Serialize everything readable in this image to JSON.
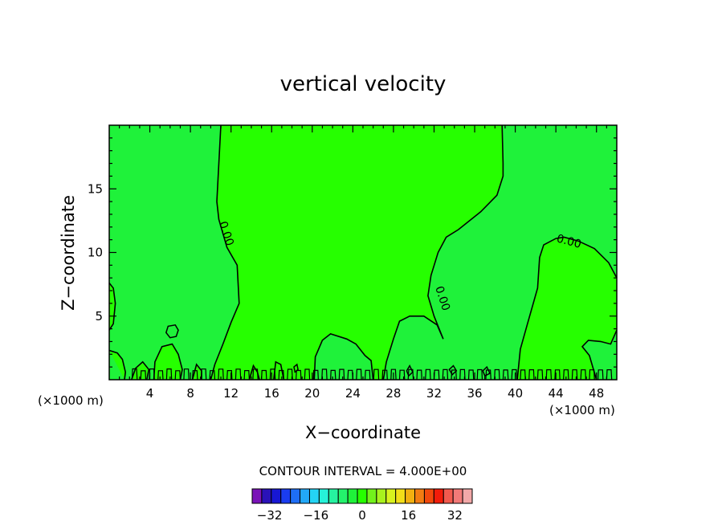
{
  "chart_data": {
    "type": "heatmap",
    "title": "vertical velocity",
    "xlabel": "X−coordinate",
    "ylabel": "Z−coordinate",
    "x_unit": "(×1000 m)",
    "y_unit": "(×1000 m)",
    "xlim": [
      0,
      50
    ],
    "ylim": [
      0,
      20
    ],
    "x_ticks": [
      4,
      8,
      12,
      16,
      20,
      24,
      28,
      32,
      36,
      40,
      44,
      48
    ],
    "y_ticks": [
      5,
      10,
      15
    ],
    "contour_interval_label": "CONTOUR INTERVAL = 4.000E+00",
    "contour_label": "0.00",
    "colorbar": {
      "ticks": [
        {
          "value": -32,
          "label": "−32"
        },
        {
          "value": -16,
          "label": "−16"
        },
        {
          "value": 0,
          "label": "0"
        },
        {
          "value": 16,
          "label": "16"
        },
        {
          "value": 32,
          "label": "32"
        }
      ],
      "range": [
        -38,
        38
      ],
      "interval": 4,
      "colors": [
        "#7a12b8",
        "#2a12b8",
        "#1717d4",
        "#1a3cf0",
        "#1e6ef6",
        "#22a8f8",
        "#24d4f4",
        "#26f2d8",
        "#26f2a0",
        "#24f26c",
        "#1ff23a",
        "#26ff00",
        "#72f21c",
        "#a8f21e",
        "#d8f21e",
        "#f2de18",
        "#f2b010",
        "#f27c12",
        "#f2480c",
        "#f21c0a",
        "#f25a4e",
        "#f27a78",
        "#f2a8a8"
      ]
    },
    "regions": {
      "positive_color": "#26ff00",
      "negative_color": "#1ff23a"
    },
    "contours": [
      [
        [
          11.0,
          20
        ],
        [
          10.8,
          17
        ],
        [
          10.6,
          14
        ],
        [
          10.8,
          12.6
        ],
        [
          11.6,
          10.4
        ],
        [
          12.6,
          9
        ],
        [
          12.8,
          6
        ],
        [
          12.0,
          4.5
        ],
        [
          11.2,
          2.8
        ],
        [
          10.4,
          1.2
        ],
        [
          10.0,
          0
        ]
      ],
      [
        [
          38.7,
          20
        ],
        [
          38.8,
          17
        ],
        [
          38.8,
          16
        ],
        [
          38.2,
          14.5
        ],
        [
          36.6,
          13.2
        ],
        [
          34.4,
          11.8
        ],
        [
          33.2,
          11.2
        ],
        [
          32.4,
          10
        ],
        [
          31.7,
          8.2
        ],
        [
          31.4,
          6.6
        ],
        [
          32.0,
          5.0
        ],
        [
          32.9,
          3.2
        ],
        [
          32.3,
          4.3
        ],
        [
          31.0,
          5.0
        ],
        [
          29.6,
          5.0
        ],
        [
          28.6,
          4.6
        ],
        [
          28.0,
          3.2
        ],
        [
          27.3,
          1.4
        ],
        [
          27.0,
          0
        ]
      ],
      [
        [
          40.2,
          0
        ],
        [
          40.5,
          2.4
        ],
        [
          41.2,
          4.4
        ],
        [
          42.2,
          7.2
        ],
        [
          42.4,
          9.6
        ],
        [
          42.8,
          10.6
        ],
        [
          44.0,
          11.1
        ],
        [
          44.8,
          11.2
        ],
        [
          46.2,
          10.9
        ],
        [
          47.8,
          10.3
        ],
        [
          49.2,
          9.2
        ],
        [
          50,
          8.0
        ]
      ],
      [
        [
          0,
          7.6
        ],
        [
          0.4,
          7.2
        ],
        [
          0.6,
          6.0
        ],
        [
          0.4,
          4.4
        ],
        [
          0,
          3.9
        ]
      ],
      [
        [
          0,
          2.3
        ],
        [
          0.8,
          2.1
        ],
        [
          1.3,
          1.6
        ],
        [
          1.6,
          0.6
        ],
        [
          1.5,
          0
        ]
      ],
      [
        [
          2.2,
          0
        ],
        [
          2.6,
          0.9
        ],
        [
          3.3,
          1.4
        ],
        [
          3.9,
          0.8
        ],
        [
          3.7,
          0
        ]
      ],
      [
        [
          4.4,
          0
        ],
        [
          4.5,
          1.4
        ],
        [
          5.2,
          2.6
        ],
        [
          6.2,
          2.8
        ],
        [
          6.8,
          2.0
        ],
        [
          7.2,
          0.8
        ],
        [
          7.0,
          0
        ]
      ],
      [
        [
          8.2,
          0
        ],
        [
          8.6,
          1.2
        ],
        [
          9.1,
          0.7
        ],
        [
          9.1,
          0
        ]
      ],
      [
        [
          20.2,
          0
        ],
        [
          20.3,
          1.8
        ],
        [
          21.0,
          3.1
        ],
        [
          21.8,
          3.6
        ],
        [
          23.4,
          3.2
        ],
        [
          24.3,
          2.8
        ],
        [
          25.2,
          1.9
        ],
        [
          25.8,
          1.5
        ],
        [
          26.0,
          0
        ]
      ],
      [
        [
          13.8,
          0
        ],
        [
          14.2,
          1.1
        ],
        [
          14.6,
          0.6
        ],
        [
          14.8,
          0
        ]
      ],
      [
        [
          16.2,
          0
        ],
        [
          16.4,
          1.4
        ],
        [
          16.9,
          1.2
        ],
        [
          17.2,
          0
        ]
      ],
      [
        [
          48.0,
          0
        ],
        [
          47.3,
          1.9
        ],
        [
          46.6,
          2.6
        ],
        [
          47.2,
          3.1
        ],
        [
          48.4,
          3.0
        ],
        [
          49.4,
          2.8
        ],
        [
          50,
          3.9
        ]
      ]
    ],
    "closed_contours": [
      [
        [
          6.5,
          4.3
        ],
        [
          6.8,
          3.9
        ],
        [
          6.6,
          3.4
        ],
        [
          6.0,
          3.3
        ],
        [
          5.6,
          3.7
        ],
        [
          5.8,
          4.2
        ]
      ],
      [
        [
          18.5,
          1.2
        ],
        [
          18.6,
          0.8
        ],
        [
          18.3,
          0.6
        ],
        [
          18.2,
          1.0
        ]
      ],
      [
        [
          33.9,
          1.1
        ],
        [
          34.2,
          0.7
        ],
        [
          33.8,
          0.4
        ],
        [
          33.5,
          0.8
        ]
      ],
      [
        [
          29.6,
          1.1
        ],
        [
          29.9,
          0.6
        ],
        [
          29.5,
          0.3
        ],
        [
          29.3,
          0.7
        ]
      ],
      [
        [
          37.2,
          1.0
        ],
        [
          37.5,
          0.5
        ],
        [
          37.0,
          0.3
        ],
        [
          36.8,
          0.7
        ]
      ]
    ],
    "contour_labels": [
      {
        "x": 11.2,
        "y": 11.4,
        "angle": 72
      },
      {
        "x": 32.5,
        "y": 6.3,
        "angle": 72
      },
      {
        "x": 45.2,
        "y": 10.6,
        "angle": 15
      }
    ]
  }
}
